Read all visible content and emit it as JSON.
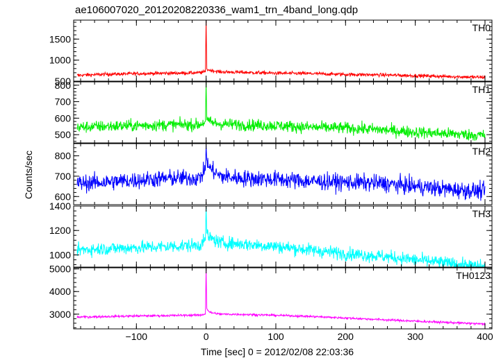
{
  "chart_data": {
    "type": "line",
    "title": "ae106007020_20120208220336_wam1_trn_4band_long.qdp",
    "xlabel": "Time [sec] 0 = 2012/02/08 22:03:36",
    "ylabel": "Counts/sec",
    "xlim": [
      -190,
      410
    ],
    "x_ticks": [
      -100,
      0,
      100,
      200,
      300,
      400
    ],
    "x_tick_labels": [
      "−100",
      "0",
      "100",
      "200",
      "300",
      "400"
    ],
    "grid": false,
    "panels": [
      {
        "name": "TH0",
        "color": "#ff0000",
        "ylim": [
          500,
          1950
        ],
        "y_ticks": [
          500,
          1000,
          1500
        ],
        "y_tick_labels": [
          "500",
          "1000",
          "1500"
        ],
        "x": [
          -185,
          -150,
          -100,
          -50,
          -10,
          -1,
          0,
          1,
          5,
          20,
          50,
          100,
          150,
          200,
          250,
          300,
          350,
          400
        ],
        "y": [
          640,
          660,
          680,
          690,
          700,
          720,
          1950,
          790,
          760,
          720,
          710,
          690,
          680,
          660,
          650,
          630,
          610,
          590
        ],
        "noise": 35
      },
      {
        "name": "TH1",
        "color": "#00ee00",
        "ylim": [
          450,
          820
        ],
        "y_ticks": [
          500,
          600,
          700,
          800
        ],
        "y_tick_labels": [
          "500",
          "600",
          "700",
          "800"
        ],
        "x": [
          -185,
          -150,
          -100,
          -50,
          -10,
          -1,
          0,
          1,
          5,
          20,
          50,
          100,
          150,
          200,
          250,
          300,
          350,
          400
        ],
        "y": [
          545,
          550,
          555,
          560,
          560,
          580,
          820,
          590,
          575,
          565,
          560,
          555,
          545,
          540,
          530,
          515,
          505,
          495
        ],
        "noise": 30
      },
      {
        "name": "TH2",
        "color": "#0000ff",
        "ylim": [
          560,
          860
        ],
        "y_ticks": [
          600,
          700,
          800
        ],
        "y_tick_labels": [
          "600",
          "700",
          "800"
        ],
        "x": [
          -185,
          -150,
          -100,
          -50,
          -10,
          -1,
          0,
          1,
          5,
          20,
          50,
          100,
          150,
          200,
          250,
          300,
          350,
          400
        ],
        "y": [
          665,
          670,
          680,
          690,
          690,
          730,
          850,
          780,
          740,
          700,
          690,
          685,
          675,
          670,
          665,
          650,
          635,
          625
        ],
        "noise": 35
      },
      {
        "name": "TH3",
        "color": "#00ffff",
        "ylim": [
          900,
          1400
        ],
        "y_ticks": [
          1000,
          1200,
          1400
        ],
        "y_tick_labels": [
          "1000",
          "1200",
          "1400"
        ],
        "x": [
          -185,
          -150,
          -100,
          -50,
          -10,
          -1,
          0,
          1,
          5,
          20,
          50,
          100,
          150,
          200,
          250,
          300,
          350,
          400
        ],
        "y": [
          1040,
          1050,
          1060,
          1070,
          1080,
          1120,
          1400,
          1180,
          1140,
          1100,
          1090,
          1070,
          1040,
          1010,
          990,
          960,
          930,
          900
        ],
        "noise": 45
      },
      {
        "name": "TH0123",
        "color": "#ff00ff",
        "ylim": [
          2350,
          5050
        ],
        "y_ticks": [
          3000,
          4000,
          5000
        ],
        "y_tick_labels": [
          "3000",
          "4000",
          "5000"
        ],
        "x": [
          -185,
          -150,
          -100,
          -50,
          -10,
          -1,
          0,
          1,
          5,
          20,
          50,
          100,
          150,
          200,
          250,
          300,
          350,
          400
        ],
        "y": [
          2870,
          2890,
          2920,
          2940,
          2960,
          3000,
          5000,
          3250,
          3080,
          3000,
          2990,
          2950,
          2900,
          2830,
          2760,
          2690,
          2630,
          2560
        ],
        "noise": 40
      }
    ]
  }
}
